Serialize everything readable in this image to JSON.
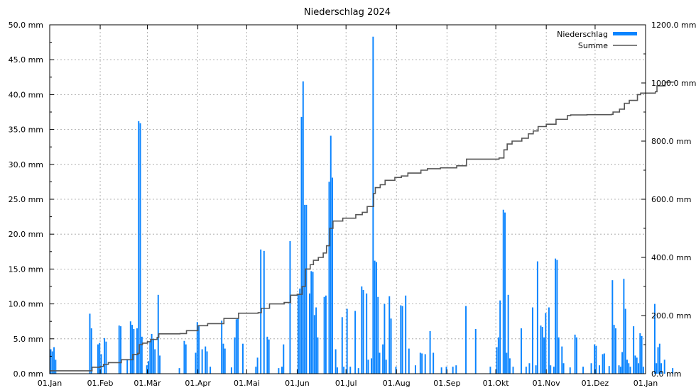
{
  "chart_data": {
    "type": "bar",
    "title": "Niederschlag 2024",
    "grid": true,
    "legend_position": "top-right",
    "x_ticks": [
      "01.Jan",
      "01.Feb",
      "01.Mär",
      "01.Apr",
      "01.Mai",
      "01.Jun",
      "01.Jul",
      "01.Aug",
      "01.Sep",
      "01.Okt",
      "01.Nov",
      "01.Dez",
      "01.Jan"
    ],
    "xlim_days": [
      0,
      366
    ],
    "ylim_left": [
      0,
      50
    ],
    "ylim_right": [
      0,
      1200
    ],
    "y_ticks_left": [
      "0.0 mm",
      "5.0 mm",
      "10.0 mm",
      "15.0 mm",
      "20.0 mm",
      "25.0 mm",
      "30.0 mm",
      "35.0 mm",
      "40.0 mm",
      "45.0 mm",
      "50.0 mm"
    ],
    "y_ticks_right": [
      "0.0 mm",
      "200.0 mm",
      "400.0 mm",
      "600.0 mm",
      "800.0 mm",
      "1000.0 mm",
      "1200.0 mm"
    ],
    "colors": {
      "niederschlag": "#0a84ff",
      "summe": "#555555"
    },
    "series": [
      {
        "name": "Niederschlag",
        "kind": "bar",
        "axis": "left",
        "points": [
          [
            1,
            3.5
          ],
          [
            2,
            3.2
          ],
          [
            3,
            3.8
          ],
          [
            4,
            2.0
          ],
          [
            25,
            8.6
          ],
          [
            26,
            6.5
          ],
          [
            30,
            4.2
          ],
          [
            31,
            4.4
          ],
          [
            32,
            2.8
          ],
          [
            34,
            5.1
          ],
          [
            35,
            4.6
          ],
          [
            43,
            6.9
          ],
          [
            44,
            6.8
          ],
          [
            48,
            2.1
          ],
          [
            50,
            7.5
          ],
          [
            51,
            7.0
          ],
          [
            52,
            6.4
          ],
          [
            54,
            6.5
          ],
          [
            55,
            36.2
          ],
          [
            56,
            35.9
          ],
          [
            57,
            5.3
          ],
          [
            60,
            1.2
          ],
          [
            61,
            1.8
          ],
          [
            62,
            4.5
          ],
          [
            63,
            5.7
          ],
          [
            64,
            5.0
          ],
          [
            65,
            3.5
          ],
          [
            67,
            11.3
          ],
          [
            68,
            2.6
          ],
          [
            80,
            0.8
          ],
          [
            83,
            4.7
          ],
          [
            84,
            4.2
          ],
          [
            90,
            3.0
          ],
          [
            91,
            7.4
          ],
          [
            92,
            6.8
          ],
          [
            94,
            3.5
          ],
          [
            96,
            3.9
          ],
          [
            97,
            3.2
          ],
          [
            99,
            1.0
          ],
          [
            106,
            7.6
          ],
          [
            107,
            4.3
          ],
          [
            108,
            3.6
          ],
          [
            112,
            0.9
          ],
          [
            114,
            5.2
          ],
          [
            115,
            7.8
          ],
          [
            116,
            8.0
          ],
          [
            119,
            4.3
          ],
          [
            127,
            1.0
          ],
          [
            128,
            2.3
          ],
          [
            130,
            17.8
          ],
          [
            132,
            17.6
          ],
          [
            134,
            5.3
          ],
          [
            135,
            4.9
          ],
          [
            141,
            0.8
          ],
          [
            143,
            1.0
          ],
          [
            144,
            4.2
          ],
          [
            148,
            19.0
          ],
          [
            153,
            11.4
          ],
          [
            154,
            12.2
          ],
          [
            155,
            36.8
          ],
          [
            156,
            41.9
          ],
          [
            157,
            24.2
          ],
          [
            158,
            24.2
          ],
          [
            160,
            11.5
          ],
          [
            161,
            14.7
          ],
          [
            162,
            14.6
          ],
          [
            163,
            8.4
          ],
          [
            164,
            9.5
          ],
          [
            165,
            5.2
          ],
          [
            169,
            11.0
          ],
          [
            170,
            11.2
          ],
          [
            172,
            27.5
          ],
          [
            173,
            34.1
          ],
          [
            174,
            28.1
          ],
          [
            176,
            3.5
          ],
          [
            177,
            0.9
          ],
          [
            180,
            8.1
          ],
          [
            181,
            1.0
          ],
          [
            183,
            9.3
          ],
          [
            185,
            1.0
          ],
          [
            188,
            9.0
          ],
          [
            190,
            0.8
          ],
          [
            192,
            12.5
          ],
          [
            193,
            12.0
          ],
          [
            195,
            11.5
          ],
          [
            196,
            2.0
          ],
          [
            198,
            2.2
          ],
          [
            199,
            48.3
          ],
          [
            200,
            16.2
          ],
          [
            201,
            16.0
          ],
          [
            202,
            11.0
          ],
          [
            203,
            3.0
          ],
          [
            205,
            4.2
          ],
          [
            206,
            10.0
          ],
          [
            207,
            2.0
          ],
          [
            209,
            11.1
          ],
          [
            210,
            7.9
          ],
          [
            213,
            1.0
          ],
          [
            216,
            9.8
          ],
          [
            217,
            9.7
          ],
          [
            219,
            11.2
          ],
          [
            221,
            3.6
          ],
          [
            225,
            1.2
          ],
          [
            228,
            3.0
          ],
          [
            229,
            2.9
          ],
          [
            231,
            2.8
          ],
          [
            234,
            6.1
          ],
          [
            236,
            3.0
          ],
          [
            241,
            0.9
          ],
          [
            244,
            1.0
          ],
          [
            248,
            1.0
          ],
          [
            250,
            1.2
          ],
          [
            256,
            9.7
          ],
          [
            262,
            6.4
          ],
          [
            271,
            1.0
          ],
          [
            275,
            3.8
          ],
          [
            276,
            5.2
          ],
          [
            277,
            10.5
          ],
          [
            279,
            23.5
          ],
          [
            280,
            23.1
          ],
          [
            281,
            3.0
          ],
          [
            282,
            11.3
          ],
          [
            283,
            2.2
          ],
          [
            285,
            1.0
          ],
          [
            290,
            6.5
          ],
          [
            293,
            1.0
          ],
          [
            295,
            1.5
          ],
          [
            297,
            9.5
          ],
          [
            299,
            1.2
          ],
          [
            300,
            16.1
          ],
          [
            302,
            6.9
          ],
          [
            303,
            6.7
          ],
          [
            304,
            5.2
          ],
          [
            305,
            8.7
          ],
          [
            307,
            9.5
          ],
          [
            308,
            1.2
          ],
          [
            310,
            1.0
          ],
          [
            311,
            16.5
          ],
          [
            312,
            16.3
          ],
          [
            313,
            5.2
          ],
          [
            315,
            3.9
          ],
          [
            316,
            1.5
          ],
          [
            320,
            0.9
          ],
          [
            323,
            5.6
          ],
          [
            324,
            5.2
          ],
          [
            328,
            1.0
          ],
          [
            333,
            1.5
          ],
          [
            335,
            4.2
          ],
          [
            336,
            4.0
          ],
          [
            338,
            1.2
          ],
          [
            340,
            2.8
          ],
          [
            341,
            2.9
          ],
          [
            344,
            1.1
          ],
          [
            346,
            13.4
          ],
          [
            347,
            7.0
          ],
          [
            348,
            6.5
          ],
          [
            350,
            1.2
          ],
          [
            351,
            1.0
          ],
          [
            352,
            3.1
          ],
          [
            353,
            13.6
          ],
          [
            354,
            9.3
          ],
          [
            355,
            2.0
          ],
          [
            356,
            1.5
          ],
          [
            357,
            1.0
          ],
          [
            359,
            6.8
          ],
          [
            360,
            2.6
          ],
          [
            361,
            2.3
          ],
          [
            362,
            1.5
          ],
          [
            363,
            5.8
          ],
          [
            364,
            5.4
          ],
          [
            365,
            1.0
          ],
          [
            372,
            10.0
          ],
          [
            373,
            1.5
          ],
          [
            374,
            3.8
          ],
          [
            375,
            4.3
          ],
          [
            376,
            1.5
          ],
          [
            378,
            2.0
          ],
          [
            383,
            0.8
          ]
        ]
      },
      {
        "name": "Summe",
        "kind": "line",
        "axis": "right",
        "points": [
          [
            0,
            10
          ],
          [
            25,
            10
          ],
          [
            26,
            22
          ],
          [
            31,
            25
          ],
          [
            33,
            32
          ],
          [
            36,
            38
          ],
          [
            44,
            48
          ],
          [
            51,
            66
          ],
          [
            54,
            70
          ],
          [
            55,
            100
          ],
          [
            57,
            105
          ],
          [
            60,
            110
          ],
          [
            62,
            118
          ],
          [
            66,
            125
          ],
          [
            67,
            137
          ],
          [
            80,
            138
          ],
          [
            84,
            148
          ],
          [
            91,
            165
          ],
          [
            97,
            172
          ],
          [
            107,
            190
          ],
          [
            116,
            208
          ],
          [
            128,
            210
          ],
          [
            130,
            225
          ],
          [
            135,
            240
          ],
          [
            144,
            245
          ],
          [
            148,
            270
          ],
          [
            152,
            273
          ],
          [
            155,
            300
          ],
          [
            157,
            360
          ],
          [
            160,
            375
          ],
          [
            162,
            390
          ],
          [
            165,
            400
          ],
          [
            168,
            415
          ],
          [
            170,
            440
          ],
          [
            172,
            500
          ],
          [
            174,
            525
          ],
          [
            180,
            535
          ],
          [
            188,
            547
          ],
          [
            192,
            555
          ],
          [
            195,
            575
          ],
          [
            199,
            620
          ],
          [
            200,
            640
          ],
          [
            203,
            650
          ],
          [
            206,
            665
          ],
          [
            212,
            675
          ],
          [
            216,
            680
          ],
          [
            220,
            690
          ],
          [
            228,
            700
          ],
          [
            232,
            705
          ],
          [
            240,
            708
          ],
          [
            250,
            715
          ],
          [
            256,
            738
          ],
          [
            276,
            742
          ],
          [
            279,
            770
          ],
          [
            281,
            790
          ],
          [
            284,
            800
          ],
          [
            290,
            810
          ],
          [
            294,
            825
          ],
          [
            297,
            835
          ],
          [
            300,
            850
          ],
          [
            305,
            858
          ],
          [
            311,
            875
          ],
          [
            318,
            888
          ],
          [
            320,
            890
          ],
          [
            330,
            891
          ],
          [
            345,
            892
          ],
          [
            346,
            900
          ],
          [
            350,
            910
          ],
          [
            353,
            930
          ],
          [
            356,
            940
          ],
          [
            361,
            960
          ],
          [
            363,
            965
          ],
          [
            372,
            970
          ],
          [
            373,
            990
          ],
          [
            378,
            1003
          ],
          [
            383,
            1005
          ]
        ]
      }
    ]
  }
}
